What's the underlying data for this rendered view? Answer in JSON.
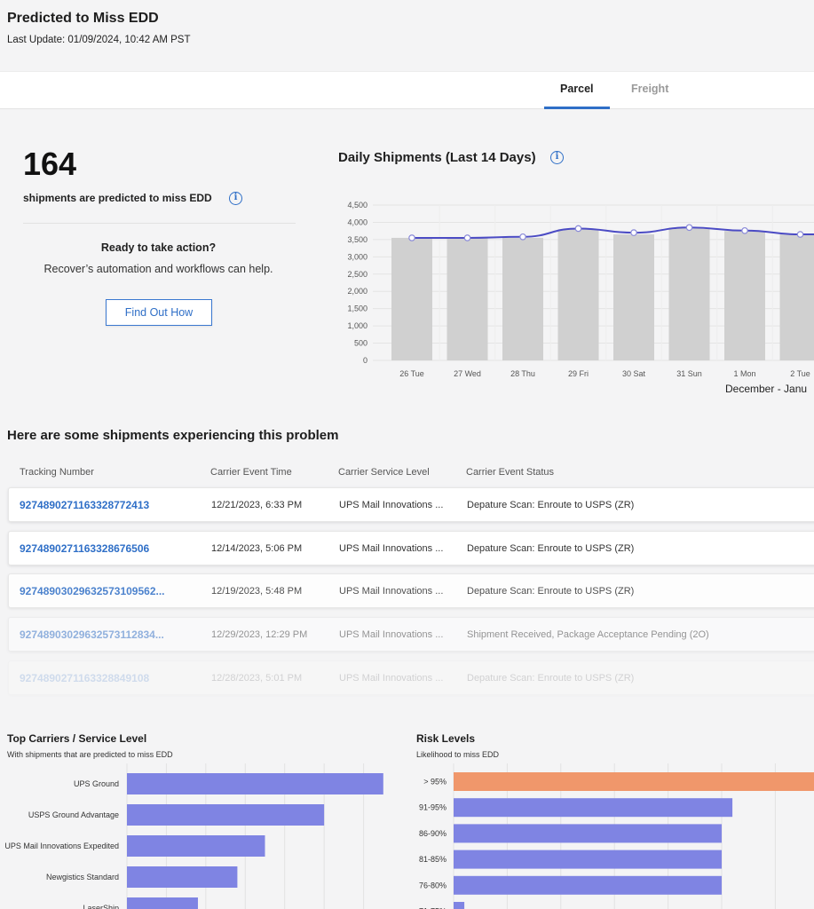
{
  "header": {
    "title": "Predicted to Miss EDD",
    "last_update": "Last Update: 01/09/2024, 10:42 AM PST"
  },
  "tabs": [
    {
      "label": "Parcel",
      "active": true
    },
    {
      "label": "Freight",
      "active": false
    }
  ],
  "summary": {
    "count": "164",
    "caption": "shipments are predicted to miss EDD",
    "action_title": "Ready to take action?",
    "action_text": "Recover’s automation and workflows can help.",
    "button_label": "Find Out How",
    "info_glyph": "i"
  },
  "daily_chart": {
    "title": "Daily Shipments (Last 14 Days)",
    "range_label": "December - Janu"
  },
  "shipments": {
    "title": "Here are some shipments experiencing this problem",
    "columns": [
      "Tracking Number",
      "Carrier Event Time",
      "Carrier Service Level",
      "Carrier Event Status"
    ],
    "rows": [
      {
        "tracking": "9274890271163328772413",
        "time": "12/21/2023, 6:33 PM",
        "service": "UPS Mail Innovations ...",
        "status": "Depature Scan: Enroute to USPS (ZR)"
      },
      {
        "tracking": "9274890271163328676506",
        "time": "12/14/2023, 5:06 PM",
        "service": "UPS Mail Innovations ...",
        "status": "Depature Scan: Enroute to USPS (ZR)"
      },
      {
        "tracking": "92748903029632573109562...",
        "time": "12/19/2023, 5:48 PM",
        "service": "UPS Mail Innovations ...",
        "status": "Depature Scan: Enroute to USPS (ZR)"
      },
      {
        "tracking": "92748903029632573112834...",
        "time": "12/29/2023, 12:29 PM",
        "service": "UPS Mail Innovations ...",
        "status": "Shipment Received, Package Acceptance Pending (2O)"
      },
      {
        "tracking": "9274890271163328849108",
        "time": "12/28/2023, 5:01 PM",
        "service": "UPS Mail Innovations ...",
        "status": "Depature Scan: Enroute to USPS (ZR)"
      }
    ]
  },
  "carriers": {
    "title": "Top Carriers / Service Level",
    "caption": "With shipments that are predicted to miss EDD"
  },
  "risk": {
    "title": "Risk Levels",
    "caption": "Likelihood to miss EDD"
  },
  "colors": {
    "accent": "#2f6fc7",
    "bar_gray": "#d0d0d0",
    "line_purple": "#4b4bc4",
    "bar_purple": "#7f84e3",
    "bar_orange": "#f0976b"
  },
  "chart_data": [
    {
      "type": "bar",
      "title": "Daily Shipments (Last 14 Days)",
      "categories": [
        "26 Tue",
        "27 Wed",
        "28 Thu",
        "29 Fri",
        "30 Sat",
        "31 Sun",
        "1 Mon",
        "2 Tue"
      ],
      "series": [
        {
          "type": "bar",
          "values": [
            3550,
            3550,
            3550,
            3800,
            3650,
            3850,
            3750,
            3650
          ]
        },
        {
          "type": "line",
          "values": [
            3550,
            3550,
            3580,
            3820,
            3700,
            3850,
            3760,
            3650
          ]
        }
      ],
      "ylim": [
        0,
        4500
      ],
      "yticks": [
        "0",
        "500",
        "1,000",
        "1,500",
        "2,000",
        "2,500",
        "3,000",
        "3,500",
        "4,000",
        "4,500"
      ],
      "grid": true
    },
    {
      "type": "bar",
      "orientation": "horizontal",
      "title": "Top Carriers / Service Level",
      "categories": [
        "UPS Ground",
        "USPS Ground Advantage",
        "UPS Mail Innovations Expedited",
        "Newgistics Standard",
        "LaserShip"
      ],
      "values": [
        65,
        50,
        35,
        28,
        18
      ],
      "xlim": [
        0,
        70
      ],
      "grid": true
    },
    {
      "type": "bar",
      "orientation": "horizontal",
      "title": "Risk Levels",
      "categories": [
        "> 95%",
        "91-95%",
        "86-90%",
        "81-85%",
        "76-80%",
        "71-75%"
      ],
      "values": [
        70,
        52,
        50,
        50,
        50,
        2
      ],
      "xlim": [
        0,
        75
      ],
      "grid": true
    }
  ]
}
